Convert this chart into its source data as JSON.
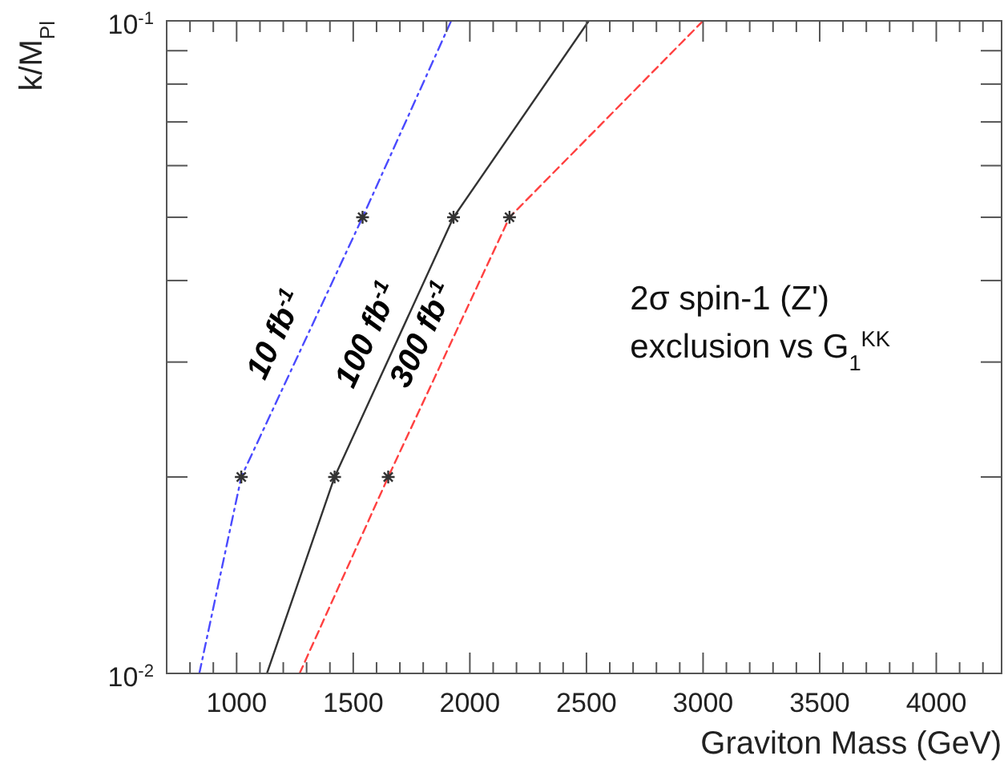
{
  "chart_data": {
    "type": "line",
    "xlabel": "Graviton Mass (GeV)",
    "ylabel": "k/M$_{Pl}$",
    "log": "y",
    "grid": false,
    "xlim": [
      700,
      4280
    ],
    "xticks": [
      {
        "value": 800,
        "label": null
      },
      {
        "value": 900,
        "label": null
      },
      1000,
      {
        "value": 1100,
        "label": null
      },
      {
        "value": 1200,
        "label": null
      },
      {
        "value": 1300,
        "label": null
      },
      {
        "value": 1400,
        "label": null
      },
      1500,
      {
        "value": 1600,
        "label": null
      },
      {
        "value": 1700,
        "label": null
      },
      {
        "value": 1800,
        "label": null
      },
      {
        "value": 1900,
        "label": null
      },
      2000,
      {
        "value": 2100,
        "label": null
      },
      {
        "value": 2200,
        "label": null
      },
      {
        "value": 2300,
        "label": null
      },
      {
        "value": 2400,
        "label": null
      },
      2500,
      {
        "value": 2600,
        "label": null
      },
      {
        "value": 2700,
        "label": null
      },
      {
        "value": 2800,
        "label": null
      },
      {
        "value": 2900,
        "label": null
      },
      3000,
      {
        "value": 3100,
        "label": null
      },
      {
        "value": 3200,
        "label": null
      },
      {
        "value": 3300,
        "label": null
      },
      {
        "value": 3400,
        "label": null
      },
      3500,
      {
        "value": 3600,
        "label": null
      },
      {
        "value": 3700,
        "label": null
      },
      {
        "value": 3800,
        "label": null
      },
      {
        "value": 3900,
        "label": null
      },
      4000,
      {
        "value": 4100,
        "label": null
      },
      {
        "value": 4200,
        "label": null
      }
    ],
    "ylim": [
      0.01,
      0.1
    ],
    "yticks": [
      {
        "value": 0.01,
        "label": "10$^{-2}$"
      },
      {
        "value": 0.02,
        "label": null
      },
      {
        "value": 0.03,
        "label": null
      },
      {
        "value": 0.04,
        "label": null
      },
      {
        "value": 0.05,
        "label": null
      },
      {
        "value": 0.06,
        "label": null
      },
      {
        "value": 0.07,
        "label": null
      },
      {
        "value": 0.08,
        "label": null
      },
      {
        "value": 0.09,
        "label": null
      },
      {
        "value": 0.1,
        "label": "10$^{-1}$"
      }
    ],
    "annotations": [
      "2σ spin-1 (Z')",
      "exclusion vs G$_{1}$$^{KK}$"
    ],
    "series": [
      {
        "name": "10 fb$^{-1}$",
        "color": "#4a4aff",
        "line_style": "dashdot",
        "x": [
          840,
          1020,
          1540,
          1920
        ],
        "values": [
          0.01,
          0.02,
          0.05,
          0.1
        ]
      },
      {
        "name": "100 fb$^{-1}$",
        "color": "#333333",
        "line_style": "solid",
        "x": [
          1130,
          1420,
          1930,
          2510
        ],
        "values": [
          0.01,
          0.02,
          0.05,
          0.1
        ]
      },
      {
        "name": "300 fb$^{-1}$",
        "color": "#ff4040",
        "line_style": "dashed",
        "x": [
          1270,
          1650,
          2170,
          3000
        ],
        "values": [
          0.01,
          0.02,
          0.05,
          0.1
        ]
      },
      {
        "type": "scatter",
        "color": "#333333",
        "marker": "cross",
        "x": [
          1020,
          1540,
          1420,
          1930,
          1650,
          2170
        ],
        "values": [
          0.02,
          0.05,
          0.02,
          0.05,
          0.02,
          0.05
        ]
      }
    ]
  }
}
